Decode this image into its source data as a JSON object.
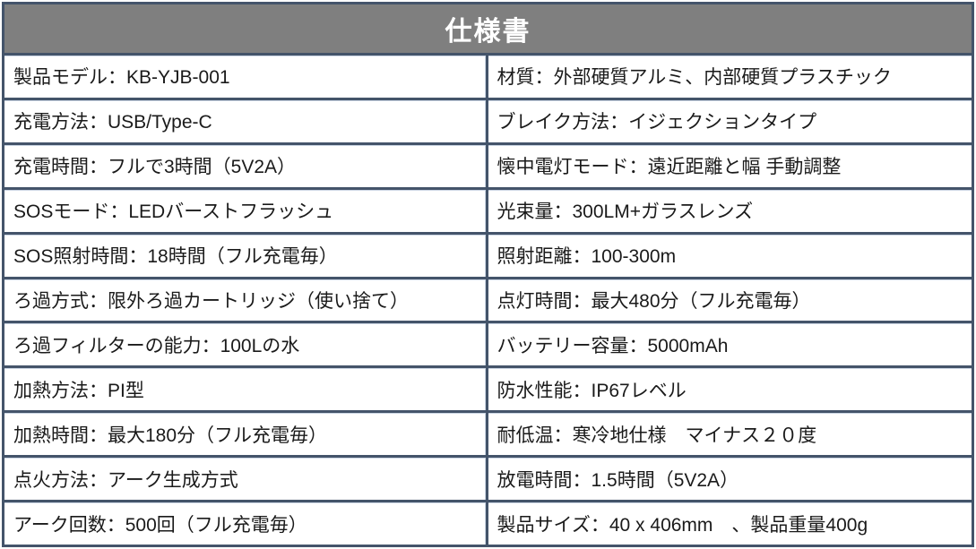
{
  "title": "仕様書",
  "colors": {
    "page_bg": "#ffffff",
    "border": "#44546a",
    "header_bg": "#7f7f7f",
    "header_text": "#ffffff",
    "cell_bg": "#ffffff",
    "cell_text": "#1a1a1a"
  },
  "table": {
    "rows": [
      {
        "left": "製品モデル：KB-YJB-001",
        "right": "材質：外部硬質アルミ、内部硬質プラスチック"
      },
      {
        "left": "充電方法：USB/Type-C",
        "right": "ブレイク方法：イジェクションタイプ"
      },
      {
        "left": "充電時間：フルで3時間（5V2A）",
        "right": "懐中電灯モード：遠近距離と幅 手動調整"
      },
      {
        "left": "SOSモード：LEDバーストフラッシュ",
        "right": "光束量：300LM+ガラスレンズ"
      },
      {
        "left": "SOS照射時間：18時間（フル充電毎）",
        "right": "照射距離：100-300m"
      },
      {
        "left": "ろ過方式：限外ろ過カートリッジ（使い捨て）",
        "right": "点灯時間：最大480分（フル充電毎）"
      },
      {
        "left": "ろ過フィルターの能力：100Lの水",
        "right": "バッテリー容量：5000mAh"
      },
      {
        "left": "加熱方法：PI型",
        "right": "防水性能：IP67レベル"
      },
      {
        "left": "加熱時間：最大180分（フル充電毎）",
        "right": "耐低温：寒冷地仕様　マイナス２０度"
      },
      {
        "left": "点火方法：アーク生成方式",
        "right": "放電時間：1.5時間（5V2A）"
      },
      {
        "left": "アーク回数：500回（フル充電毎）",
        "right": "製品サイズ：40 x 406mm　、製品重量400g"
      }
    ]
  }
}
